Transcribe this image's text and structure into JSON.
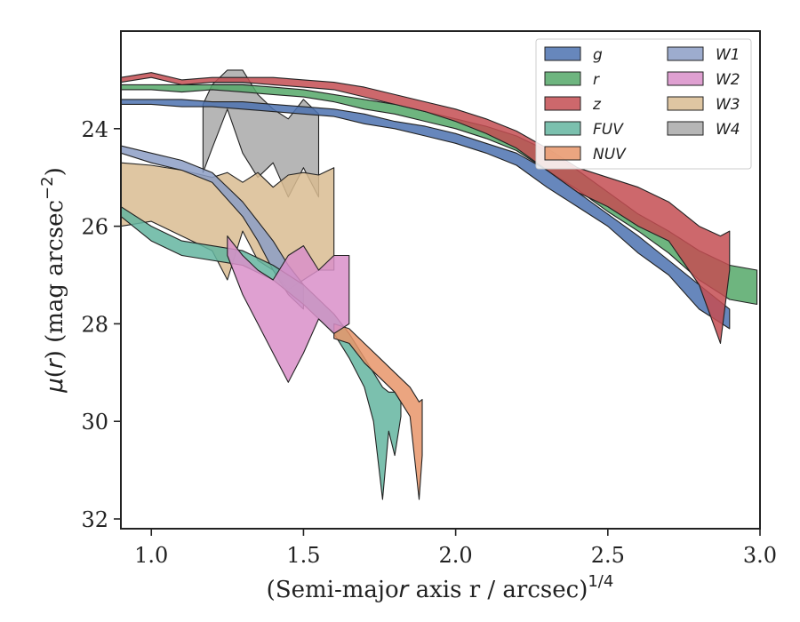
{
  "chart_data": {
    "type": "area",
    "xlabel": "(Semi-major axis r / arcsec)",
    "xlabel_var": "r",
    "xlabel_sup": "1/4",
    "ylabel": "μ(r) (mag arcsec",
    "ylabel_var": "r",
    "ylabel_sup": "−2",
    "xlim": [
      0.9,
      3.0
    ],
    "ylim": [
      32.2,
      22.0
    ],
    "y_inverted": true,
    "xticks": [
      {
        "value": 1.0,
        "label": "1.0"
      },
      {
        "value": 1.5,
        "label": "1.5"
      },
      {
        "value": 2.0,
        "label": "2.0"
      },
      {
        "value": 2.5,
        "label": "2.5"
      },
      {
        "value": 3.0,
        "label": "3.0"
      }
    ],
    "yticks": [
      {
        "value": 24,
        "label": "24"
      },
      {
        "value": 26,
        "label": "26"
      },
      {
        "value": 28,
        "label": "28"
      },
      {
        "value": 30,
        "label": "30"
      },
      {
        "value": 32,
        "label": "32"
      }
    ],
    "legend_position": "top-right",
    "series": [
      {
        "name": "g",
        "color": "#4c72b0",
        "x": [
          0.9,
          1.0,
          1.1,
          1.2,
          1.3,
          1.4,
          1.5,
          1.6,
          1.7,
          1.8,
          1.9,
          2.0,
          2.1,
          2.2,
          2.3,
          2.4,
          2.5,
          2.6,
          2.7,
          2.8,
          2.9
        ],
        "lo": [
          23.4,
          23.4,
          23.4,
          23.45,
          23.45,
          23.5,
          23.55,
          23.6,
          23.7,
          23.85,
          23.95,
          24.1,
          24.3,
          24.5,
          24.85,
          25.3,
          25.75,
          26.2,
          26.7,
          27.2,
          27.7
        ],
        "hi": [
          23.5,
          23.5,
          23.55,
          23.55,
          23.6,
          23.65,
          23.7,
          23.75,
          23.9,
          24.0,
          24.15,
          24.3,
          24.5,
          24.75,
          25.2,
          25.6,
          26.0,
          26.55,
          27.0,
          27.7,
          28.1
        ]
      },
      {
        "name": "r",
        "color": "#55a868",
        "x": [
          0.9,
          1.0,
          1.1,
          1.2,
          1.3,
          1.4,
          1.5,
          1.6,
          1.7,
          1.8,
          1.9,
          2.0,
          2.1,
          2.2,
          2.3,
          2.4,
          2.5,
          2.6,
          2.7,
          2.8,
          2.9,
          2.99
        ],
        "lo": [
          23.1,
          23.1,
          23.1,
          23.1,
          23.1,
          23.15,
          23.2,
          23.3,
          23.4,
          23.5,
          23.65,
          23.8,
          23.95,
          24.15,
          24.45,
          24.85,
          25.3,
          25.75,
          26.1,
          26.5,
          26.8,
          26.9
        ],
        "hi": [
          23.2,
          23.2,
          23.25,
          23.2,
          23.25,
          23.3,
          23.35,
          23.45,
          23.6,
          23.7,
          23.85,
          24.0,
          24.2,
          24.45,
          24.85,
          25.25,
          25.7,
          26.1,
          26.55,
          27.1,
          27.5,
          27.6
        ]
      },
      {
        "name": "z",
        "color": "#c44e52",
        "x": [
          0.9,
          1.0,
          1.1,
          1.2,
          1.3,
          1.4,
          1.5,
          1.6,
          1.7,
          1.8,
          1.9,
          2.0,
          2.1,
          2.2,
          2.3,
          2.4,
          2.5,
          2.6,
          2.7,
          2.8,
          2.87,
          2.9
        ],
        "lo": [
          22.95,
          22.85,
          23.0,
          22.95,
          22.95,
          22.95,
          23.0,
          23.05,
          23.15,
          23.3,
          23.45,
          23.6,
          23.8,
          24.05,
          24.4,
          24.8,
          25.0,
          25.2,
          25.5,
          26.0,
          26.2,
          26.1
        ],
        "hi": [
          23.05,
          22.95,
          23.1,
          23.05,
          23.05,
          23.1,
          23.15,
          23.2,
          23.35,
          23.5,
          23.65,
          23.85,
          24.1,
          24.4,
          24.85,
          25.3,
          25.6,
          26.0,
          26.3,
          27.2,
          28.4,
          26.9
        ]
      },
      {
        "name": "FUV",
        "color": "#64b5a0",
        "x": [
          0.9,
          1.0,
          1.1,
          1.2,
          1.3,
          1.4,
          1.5,
          1.6,
          1.65,
          1.7,
          1.73,
          1.76,
          1.78,
          1.8,
          1.82
        ],
        "lo": [
          25.6,
          26.0,
          26.3,
          26.4,
          26.5,
          26.8,
          27.2,
          27.8,
          28.2,
          28.7,
          29.0,
          29.3,
          29.4,
          29.4,
          29.6
        ],
        "hi": [
          25.8,
          26.3,
          26.6,
          26.7,
          26.8,
          27.1,
          27.6,
          28.2,
          28.7,
          29.3,
          30.0,
          31.6,
          30.2,
          30.7,
          29.9
        ]
      },
      {
        "name": "NUV",
        "color": "#e8956a",
        "x": [
          1.6,
          1.65,
          1.7,
          1.75,
          1.8,
          1.85,
          1.88,
          1.89
        ],
        "lo": [
          28.0,
          28.1,
          28.4,
          28.7,
          29.0,
          29.3,
          29.6,
          29.55
        ],
        "hi": [
          28.3,
          28.4,
          28.8,
          29.1,
          29.4,
          29.9,
          31.6,
          30.7
        ]
      },
      {
        "name": "W1",
        "color": "#8c9dc5",
        "x": [
          0.9,
          1.0,
          1.1,
          1.2,
          1.3,
          1.35,
          1.4,
          1.45,
          1.5
        ],
        "lo": [
          24.35,
          24.5,
          24.65,
          24.9,
          25.5,
          25.9,
          26.3,
          26.8,
          27.2
        ],
        "hi": [
          24.5,
          24.7,
          24.85,
          25.1,
          25.8,
          26.3,
          26.9,
          27.4,
          27.7
        ]
      },
      {
        "name": "W2",
        "color": "#d98fc9",
        "x": [
          1.25,
          1.3,
          1.35,
          1.4,
          1.45,
          1.5,
          1.55,
          1.6,
          1.65
        ],
        "lo": [
          26.2,
          26.6,
          26.9,
          27.1,
          26.6,
          26.4,
          26.9,
          26.6,
          26.6
        ],
        "hi": [
          26.6,
          27.4,
          28.0,
          28.6,
          29.2,
          28.6,
          27.9,
          28.2,
          28.0
        ]
      },
      {
        "name": "W3",
        "color": "#d9bc92",
        "x": [
          0.9,
          1.0,
          1.1,
          1.2,
          1.25,
          1.3,
          1.35,
          1.4,
          1.45,
          1.5,
          1.55,
          1.6
        ],
        "lo": [
          24.7,
          24.75,
          24.85,
          25.0,
          24.9,
          25.1,
          24.9,
          25.2,
          24.95,
          24.9,
          24.95,
          24.8
        ],
        "hi": [
          26.0,
          25.9,
          26.2,
          26.5,
          27.1,
          26.1,
          26.7,
          26.9,
          27.3,
          27.1,
          26.9,
          26.9
        ]
      },
      {
        "name": "W4",
        "color": "#a9a9a9",
        "x": [
          1.17,
          1.2,
          1.25,
          1.3,
          1.35,
          1.4,
          1.45,
          1.5,
          1.55
        ],
        "lo": [
          23.5,
          23.1,
          22.8,
          22.8,
          23.3,
          23.6,
          23.8,
          23.4,
          23.7
        ],
        "hi": [
          24.9,
          24.4,
          23.6,
          24.5,
          25.0,
          24.7,
          25.4,
          24.8,
          25.4
        ]
      }
    ]
  }
}
